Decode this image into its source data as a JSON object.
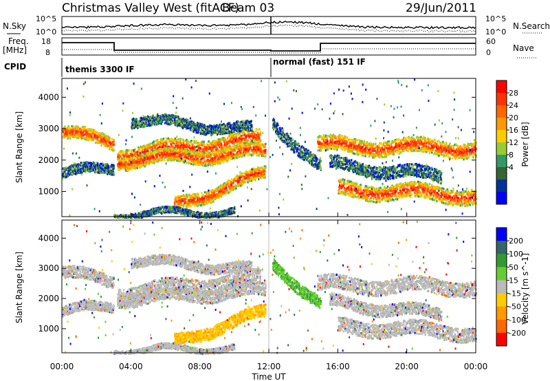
{
  "header": {
    "title": "Christmas Valley West (fitACF)",
    "beam": "Beam 03",
    "date": "29/Jun/2011"
  },
  "top_panels": {
    "nsky_label": "N.Sky",
    "nsearch_label": "N.Search",
    "n_ticks": [
      "10^5",
      "10^0"
    ],
    "freq_label": "Freq.",
    "freq_unit": "[MHz]",
    "freq_ticks": [
      "18",
      "8"
    ],
    "nave_label": "Nave",
    "nave_ticks": [
      "60",
      "0"
    ],
    "cpid_label": "CPID",
    "cpid_segment_1": "themis 3300 IF",
    "cpid_segment_2": "normal (fast) 151 IF"
  },
  "chart_data": [
    {
      "type": "heatmap",
      "name": "power",
      "ylabel": "Slant Range [km]",
      "ylim": [
        200,
        4600
      ],
      "y_ticks": [
        "4000",
        "3000",
        "2000",
        "1000"
      ],
      "colorbar_label": "Power [dB]",
      "colorbar_ticks": [
        "28",
        "24",
        "20",
        "16",
        "12",
        "8",
        "4"
      ],
      "colorbar_colors": [
        "#ff0000",
        "#ff3300",
        "#ff6600",
        "#ff9900",
        "#ffcc00",
        "#99cc33",
        "#339966",
        "#336633",
        "#003399",
        "#0000ff"
      ]
    },
    {
      "type": "heatmap",
      "name": "velocity",
      "ylabel": "Slant Range [km]",
      "ylim": [
        200,
        4600
      ],
      "y_ticks": [
        "4000",
        "3000",
        "2000",
        "1000"
      ],
      "colorbar_label": "Velocity [m s^-1]",
      "colorbar_ticks": [
        "200",
        "100",
        "50",
        "15",
        "-15",
        "-50",
        "-100",
        "-200"
      ],
      "colorbar_colors": [
        "#0000ff",
        "#336666",
        "#339933",
        "#66cc33",
        "#bbbbbb",
        "#ffcc00",
        "#ff9900",
        "#ff6600",
        "#ff0000"
      ],
      "xlabel": "Time UT",
      "x_ticks": [
        "00:00",
        "04:00",
        "08:00",
        "12:00",
        "16:00",
        "20:00",
        "00:00"
      ]
    }
  ]
}
